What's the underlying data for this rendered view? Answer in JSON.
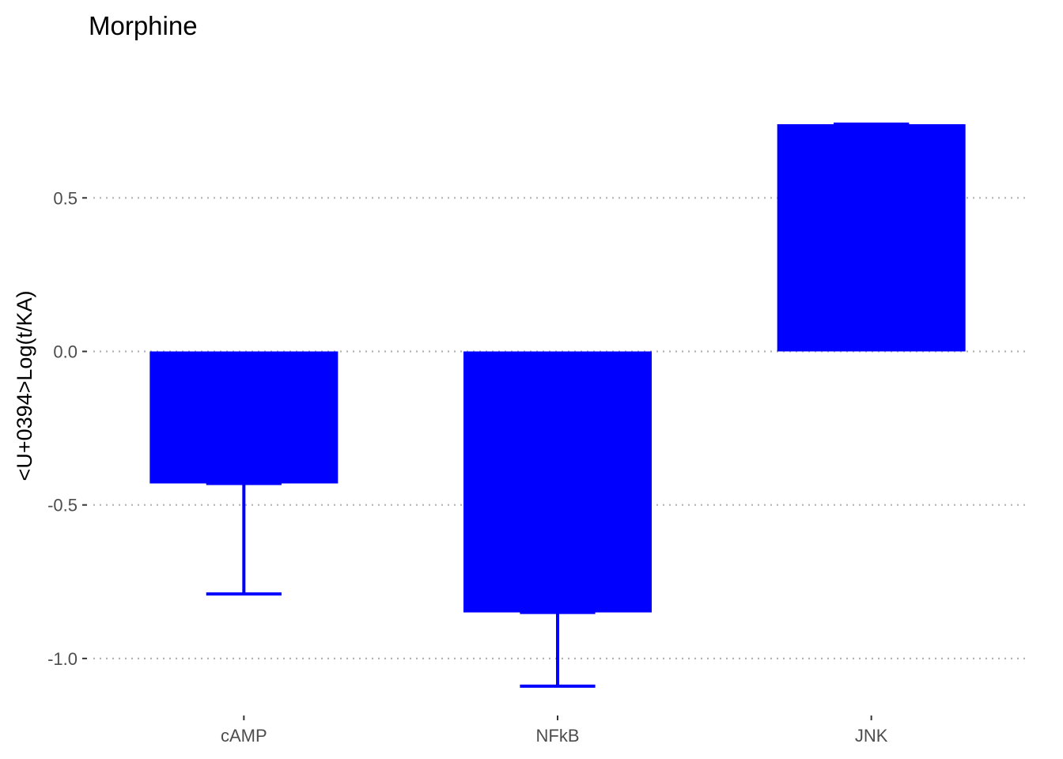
{
  "chart_data": {
    "type": "bar",
    "title": "Morphine",
    "xlabel": "",
    "ylabel": "<U+0394>Log(t/KA)",
    "categories": [
      "cAMP",
      "NFkB",
      "JNK"
    ],
    "series": [
      {
        "values": [
          -0.43,
          -0.85,
          0.74
        ],
        "error_low": [
          -0.79,
          -1.09,
          0.74
        ],
        "error_high": [
          -0.43,
          -0.85,
          0.74
        ]
      }
    ],
    "ylim": [
      -1.16,
      0.99
    ],
    "yticks": [
      -1.0,
      -0.5,
      0.0,
      0.5
    ],
    "ytick_labels": [
      "-1.0",
      "-0.5",
      "0.0",
      "0.5"
    ],
    "grid": "horizontal dotted",
    "legend": "none",
    "colors": {
      "bar": "#0000ff",
      "grid": "#b3b3b3",
      "tick": "#333333"
    }
  }
}
